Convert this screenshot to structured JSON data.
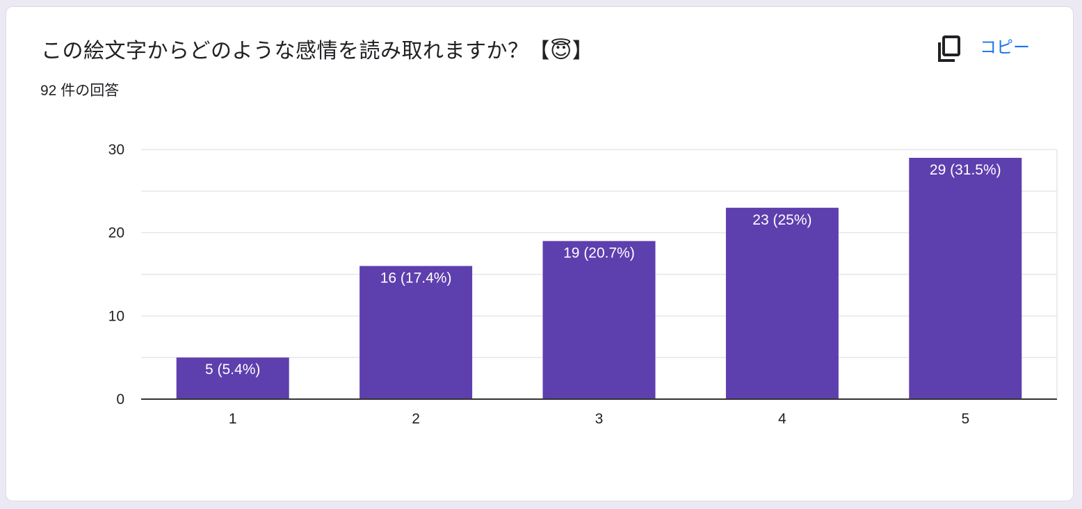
{
  "question": {
    "title": "この絵文字からどのような感情を読み取れますか？【😇】",
    "response_count": "92 件の回答"
  },
  "actions": {
    "copy_label": "コピー",
    "copy_icon": "copy-icon"
  },
  "colors": {
    "bar": "#5e3fae",
    "accent": "#1a73e8",
    "grid": "#e6e6e6",
    "axis": "#333333"
  },
  "chart_data": {
    "type": "bar",
    "categories": [
      "1",
      "2",
      "3",
      "4",
      "5"
    ],
    "values": [
      5,
      16,
      19,
      23,
      29
    ],
    "data_labels": [
      "5 (5.4%)",
      "16 (17.4%)",
      "19 (20.7%)",
      "23 (25%)",
      "29 (31.5%)"
    ],
    "ylim": [
      0,
      30
    ],
    "yticks": [
      0,
      10,
      20,
      30
    ],
    "grid": true,
    "legend": "none"
  }
}
